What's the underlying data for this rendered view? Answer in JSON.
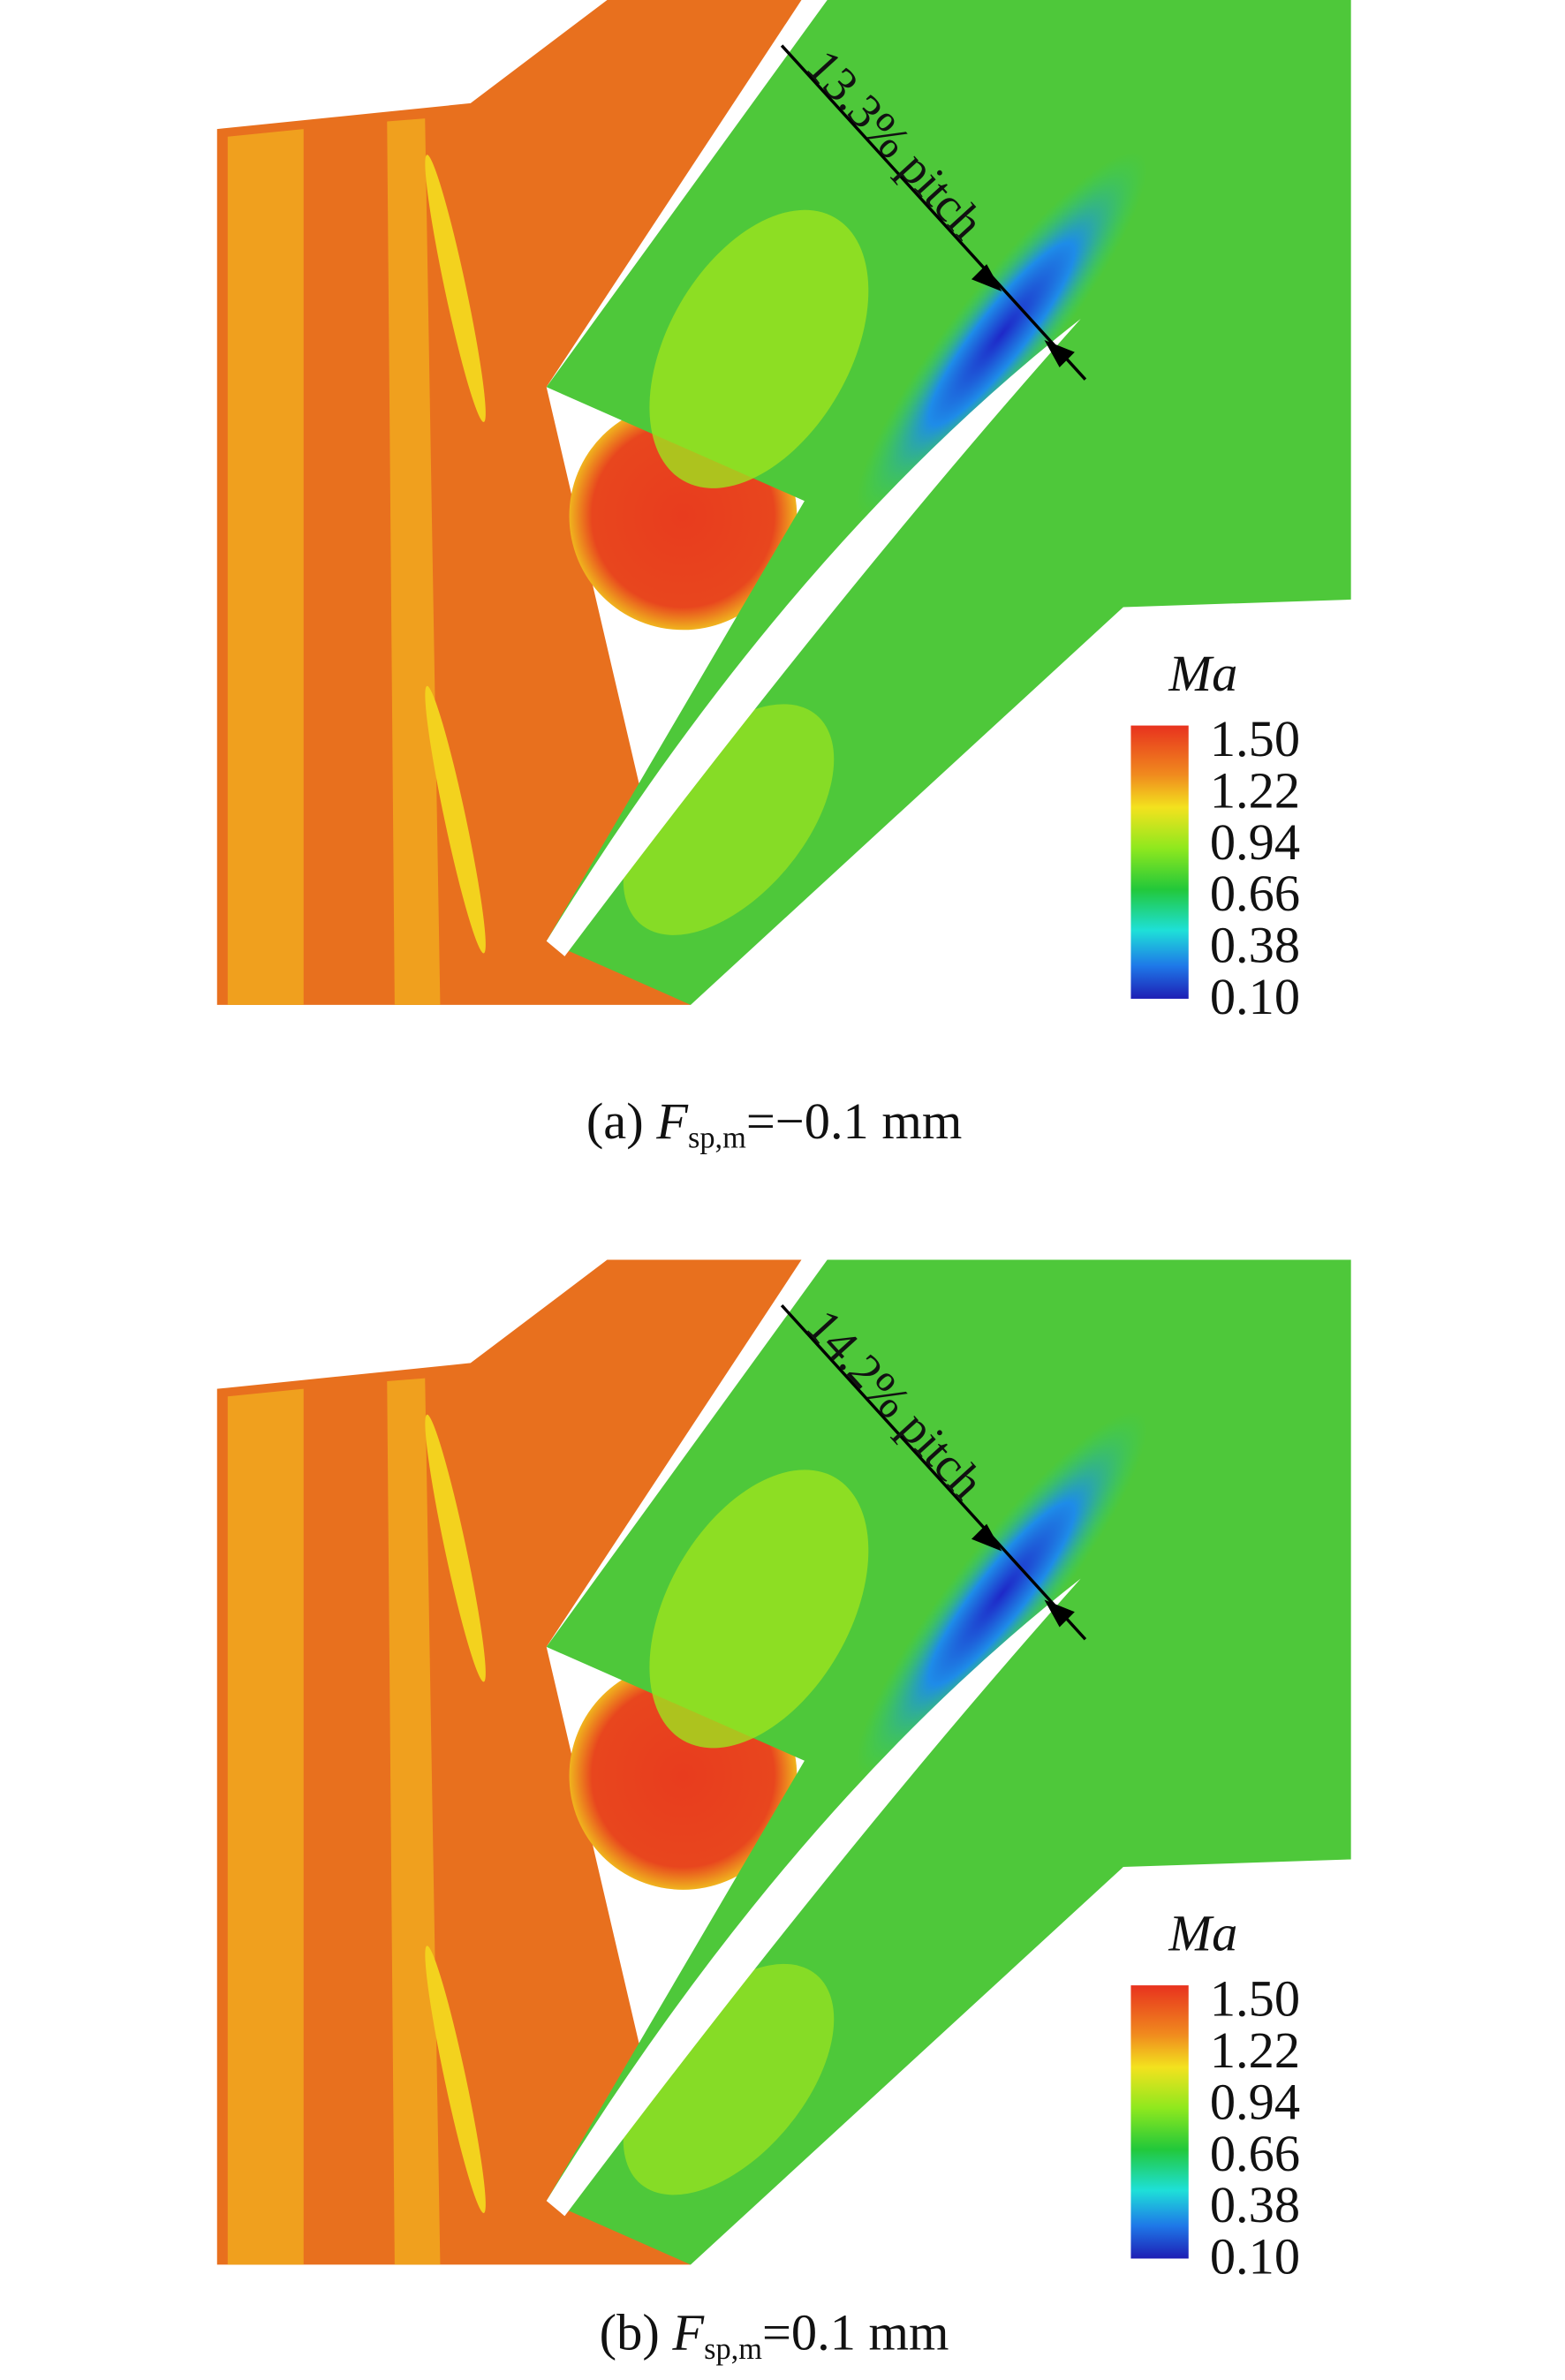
{
  "panels": [
    {
      "annotation": "13.3% pitch",
      "colorbar": {
        "title": "Ma",
        "labels": [
          "1.50",
          "1.22",
          "0.94",
          "0.66",
          "0.38",
          "0.10"
        ]
      },
      "caption": {
        "prefix": "(a) ",
        "variable": "F",
        "subscript": "sp,m",
        "suffix": "=−0.1 mm"
      }
    },
    {
      "annotation": "14.2% pitch",
      "colorbar": {
        "title": "Ma",
        "labels": [
          "1.50",
          "1.22",
          "0.94",
          "0.66",
          "0.38",
          "0.10"
        ]
      },
      "caption": {
        "prefix": "(b) ",
        "variable": "F",
        "subscript": "sp,m",
        "suffix": "=0.1 mm"
      }
    }
  ]
}
